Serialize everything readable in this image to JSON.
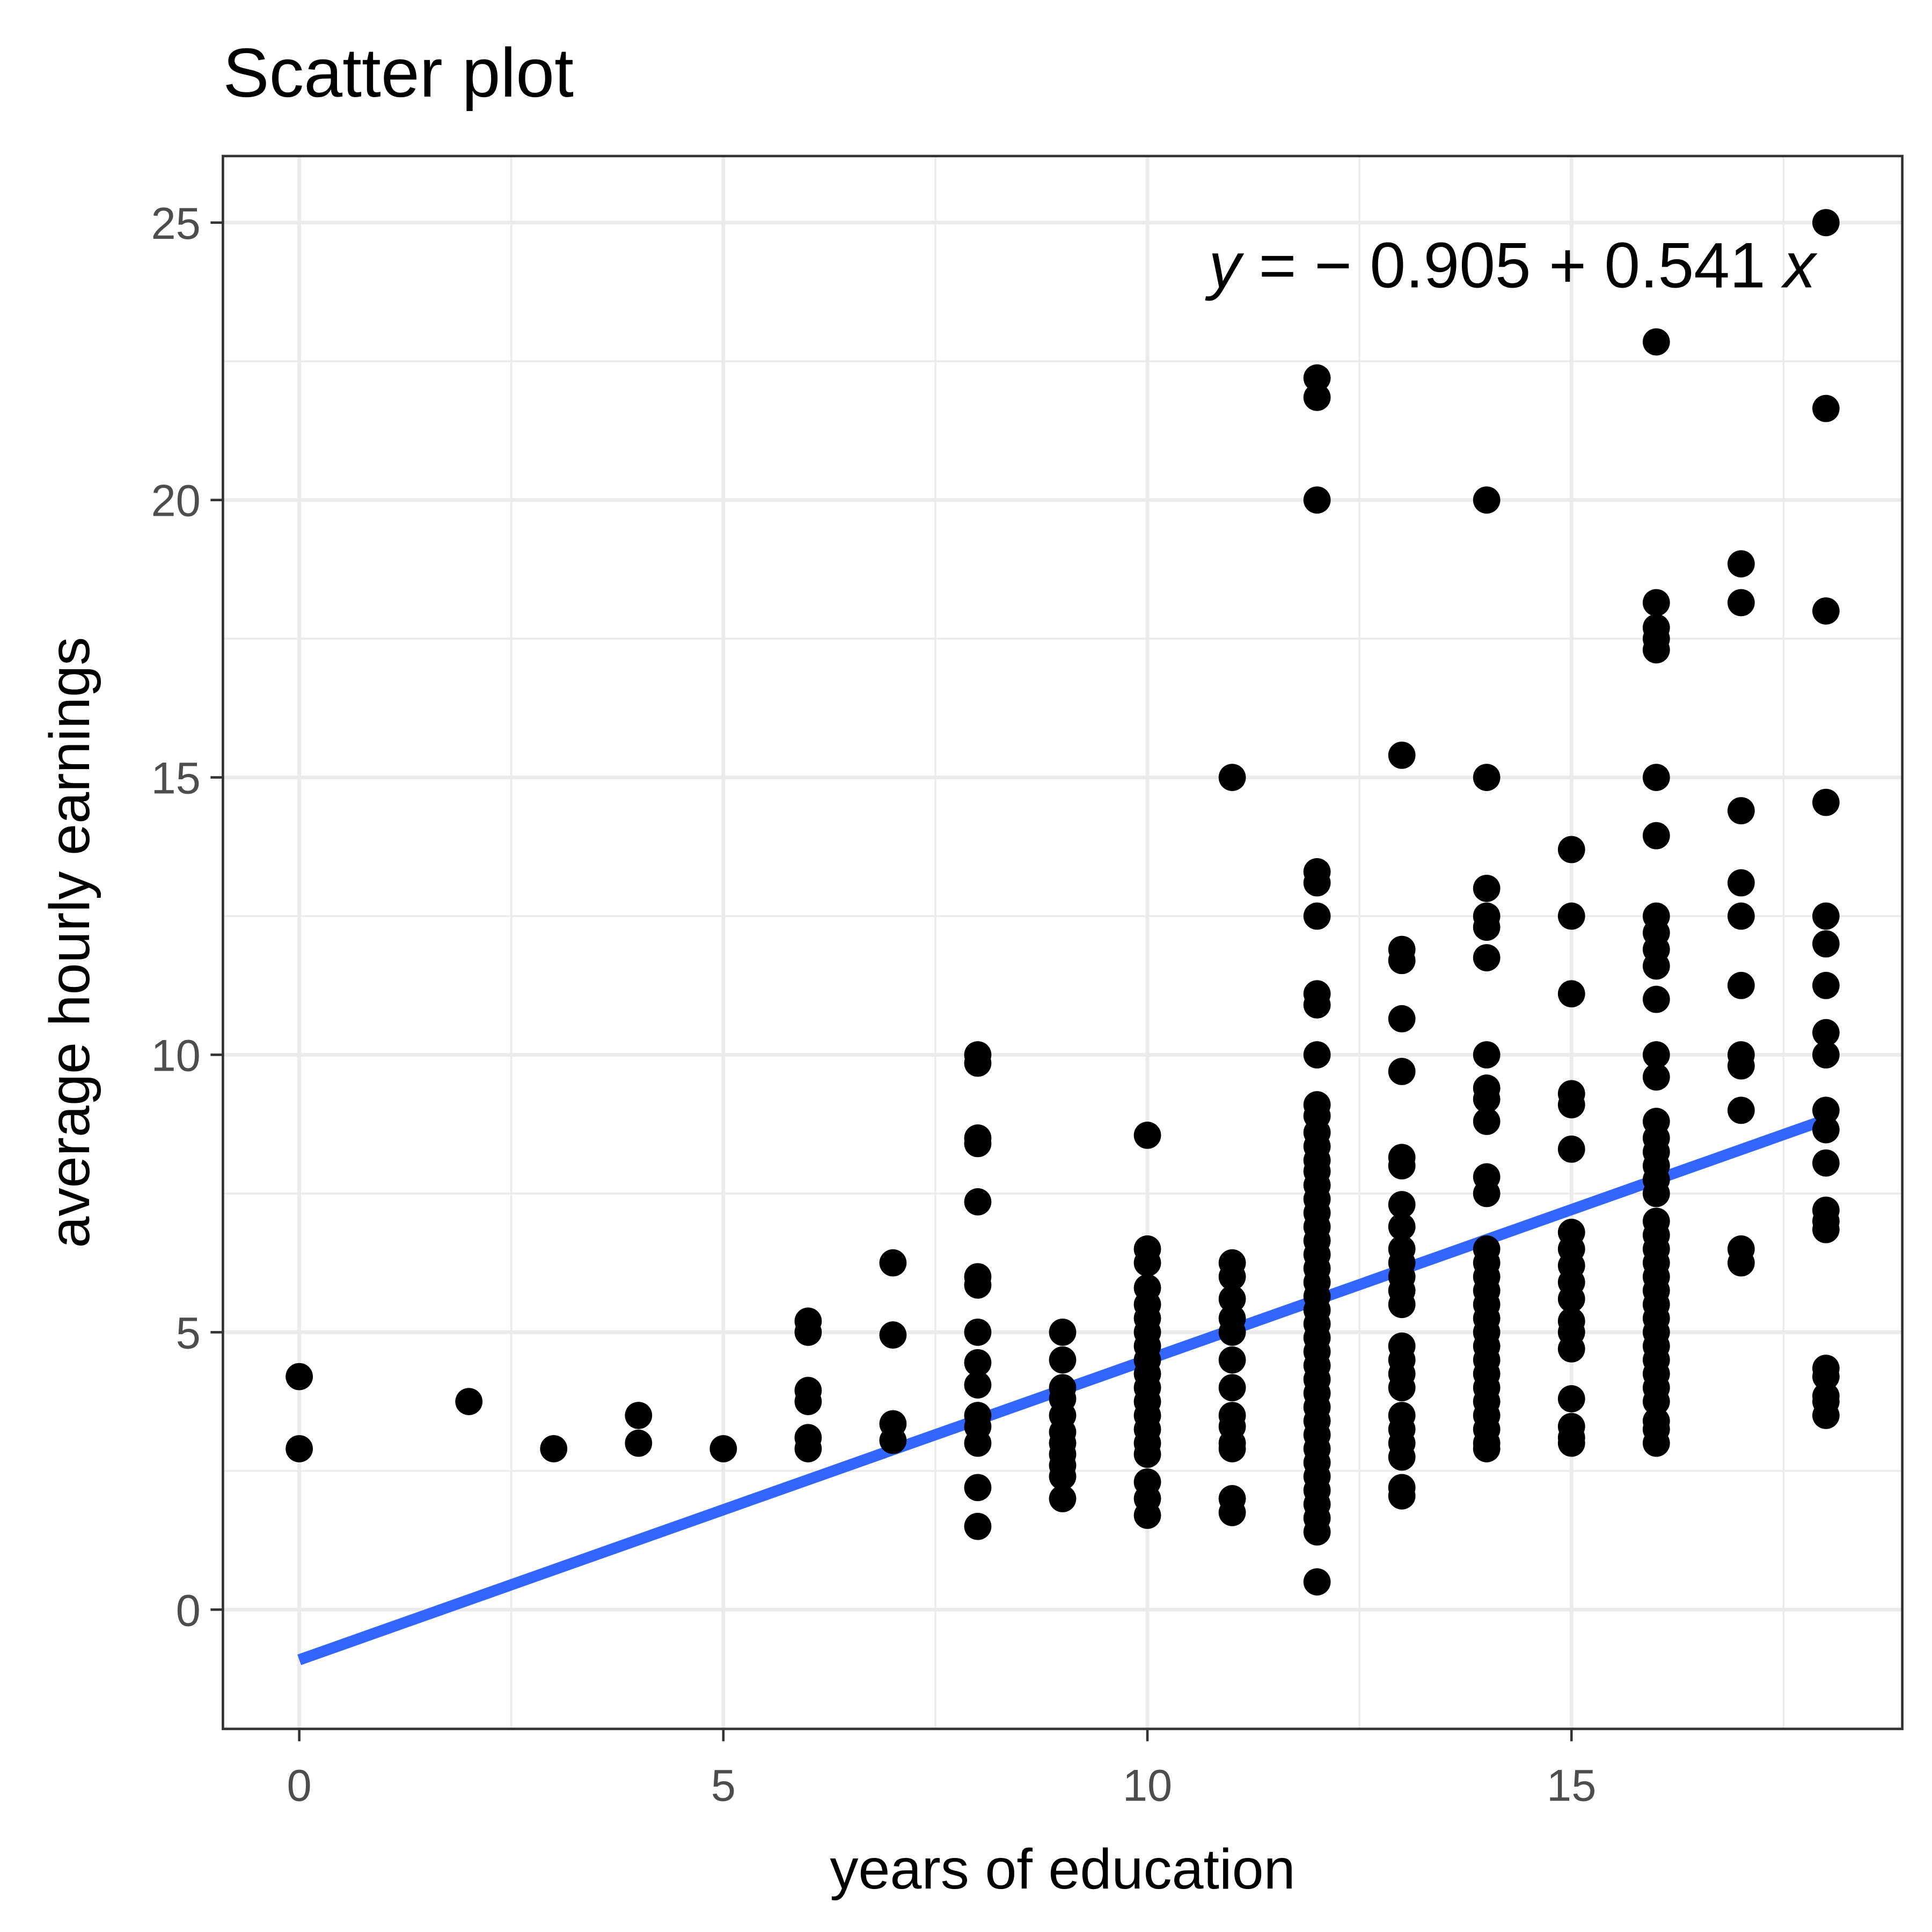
{
  "chart_data": {
    "type": "scatter",
    "title": "Scatter plot",
    "xlabel": "years of education",
    "ylabel": "average hourly earnings",
    "xlim": [
      -0.9,
      18.9
    ],
    "ylim": [
      -2.15,
      26.2
    ],
    "grid": true,
    "x_ticks": [
      0,
      5,
      10,
      15
    ],
    "x_tick_labels": [
      "0",
      "5",
      "10",
      "15"
    ],
    "y_ticks": [
      0,
      5,
      10,
      15,
      20,
      25
    ],
    "y_tick_labels": [
      "0",
      "5",
      "10",
      "15",
      "20",
      "25"
    ],
    "annotation": {
      "text_y": "y",
      "text_mid": " = − 0.905 + 0.541 ",
      "text_x": "x",
      "position": "top-right"
    },
    "fit_line": {
      "intercept": -0.905,
      "slope": 0.541,
      "x_range": [
        0,
        18
      ],
      "color": "#3366FF"
    },
    "point_color": "#000000",
    "points": [
      {
        "x": 0,
        "y": [
          4.2,
          2.9
        ]
      },
      {
        "x": 2,
        "y": [
          3.75
        ]
      },
      {
        "x": 3,
        "y": [
          2.9
        ]
      },
      {
        "x": 4,
        "y": [
          3.5,
          3.0
        ]
      },
      {
        "x": 5,
        "y": [
          2.9
        ]
      },
      {
        "x": 6,
        "y": [
          5.2,
          5.0,
          3.95,
          3.75,
          3.1,
          2.9
        ]
      },
      {
        "x": 7,
        "y": [
          6.25,
          4.95,
          3.35,
          3.05
        ]
      },
      {
        "x": 8,
        "y": [
          10.0,
          9.85,
          8.5,
          8.4,
          7.35,
          6.0,
          5.85,
          5.0,
          4.45,
          4.05,
          3.5,
          3.3,
          3.0,
          2.2,
          1.5
        ]
      },
      {
        "x": 9,
        "y": [
          5.0,
          4.5,
          4.0,
          3.8,
          3.5,
          3.2,
          3.0,
          2.8,
          2.6,
          2.4,
          2.0
        ]
      },
      {
        "x": 10,
        "y": [
          8.55,
          6.5,
          6.25,
          5.8,
          5.5,
          5.25,
          5.0,
          4.75,
          4.5,
          4.25,
          4.0,
          3.75,
          3.5,
          3.25,
          3.0,
          2.8,
          2.3,
          2.0,
          1.7
        ]
      },
      {
        "x": 11,
        "y": [
          15.0,
          6.25,
          6.0,
          5.6,
          5.25,
          5.0,
          4.5,
          4.0,
          3.5,
          3.3,
          3.0,
          2.9,
          2.0,
          1.75
        ]
      },
      {
        "x": 12,
        "y": [
          22.2,
          21.85,
          20.0,
          13.3,
          13.1,
          12.5,
          11.1,
          10.9,
          10.0,
          9.1,
          8.9,
          8.6,
          8.35,
          8.1,
          7.9,
          7.65,
          7.4,
          7.15,
          6.9,
          6.65,
          6.4,
          6.15,
          5.9,
          5.65,
          5.4,
          5.15,
          4.9,
          4.65,
          4.4,
          4.15,
          3.9,
          3.65,
          3.4,
          3.15,
          2.9,
          2.65,
          2.4,
          2.15,
          1.9,
          1.65,
          1.4,
          0.5
        ]
      },
      {
        "x": 13,
        "y": [
          15.4,
          11.9,
          11.7,
          10.65,
          9.7,
          8.15,
          8.0,
          7.3,
          6.9,
          6.5,
          6.25,
          6.0,
          5.75,
          5.5,
          4.75,
          4.5,
          4.25,
          4.0,
          3.5,
          3.25,
          3.0,
          2.75,
          2.2,
          2.05
        ]
      },
      {
        "x": 14,
        "y": [
          20.0,
          15.0,
          13.0,
          12.5,
          12.3,
          11.75,
          10.0,
          9.4,
          9.2,
          8.8,
          7.8,
          7.5,
          6.5,
          6.25,
          6.0,
          5.75,
          5.5,
          5.25,
          5.0,
          4.75,
          4.5,
          4.25,
          4.0,
          3.75,
          3.5,
          3.25,
          3.0,
          2.9
        ]
      },
      {
        "x": 15,
        "y": [
          13.7,
          12.5,
          11.1,
          9.3,
          9.1,
          8.3,
          6.8,
          6.5,
          6.2,
          5.9,
          5.6,
          5.2,
          5.0,
          4.7,
          3.8,
          3.3,
          3.1,
          3.0
        ]
      },
      {
        "x": 16,
        "y": [
          22.85,
          18.15,
          17.7,
          17.5,
          17.3,
          15.0,
          13.95,
          12.5,
          12.2,
          11.9,
          11.6,
          11.0,
          10.0,
          9.6,
          8.8,
          8.5,
          8.25,
          8.0,
          7.75,
          7.5,
          7.0,
          6.75,
          6.5,
          6.25,
          6.0,
          5.75,
          5.5,
          5.25,
          5.0,
          4.75,
          4.5,
          4.25,
          4.0,
          3.75,
          3.4,
          3.25,
          3.0
        ]
      },
      {
        "x": 17,
        "y": [
          18.85,
          18.15,
          14.4,
          13.1,
          12.5,
          11.25,
          10.0,
          9.8,
          9.0,
          6.5,
          6.25
        ]
      },
      {
        "x": 18,
        "y": [
          25.0,
          21.65,
          18.0,
          14.55,
          12.5,
          12.0,
          11.25,
          10.4,
          10.0,
          9.0,
          8.65,
          8.05,
          7.2,
          7.0,
          6.85,
          4.35,
          4.2,
          3.85,
          3.75,
          3.5
        ]
      }
    ]
  }
}
